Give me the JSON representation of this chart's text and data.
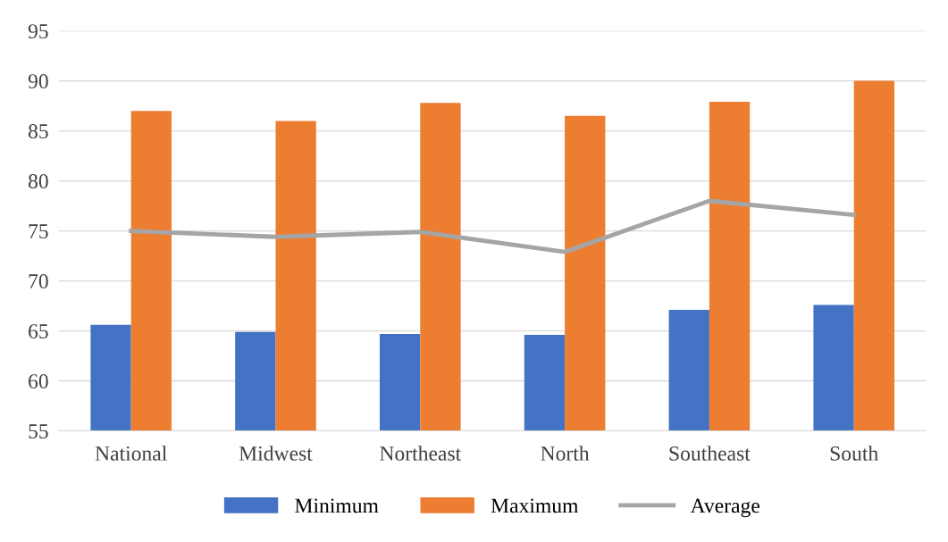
{
  "chart_data": {
    "type": "bar",
    "categories": [
      "National",
      "Midwest",
      "Northeast",
      "North",
      "Southeast",
      "South"
    ],
    "series": [
      {
        "name": "Minimum",
        "color": "#4472c4",
        "values": [
          65.6,
          64.9,
          64.7,
          64.6,
          67.1,
          67.6
        ]
      },
      {
        "name": "Maximum",
        "color": "#ed7d31",
        "values": [
          87.0,
          86.0,
          87.8,
          86.5,
          87.9,
          90.0
        ]
      },
      {
        "name": "Average",
        "type": "line",
        "color": "#a5a5a5",
        "values": [
          75.0,
          74.4,
          74.9,
          72.9,
          78.0,
          76.6
        ]
      }
    ],
    "ylim": [
      55,
      95
    ],
    "yticks": [
      55,
      60,
      65,
      70,
      75,
      80,
      85,
      90,
      95
    ],
    "grid": "y",
    "legend": "bottom",
    "marker": "none",
    "line_style": "solid"
  }
}
